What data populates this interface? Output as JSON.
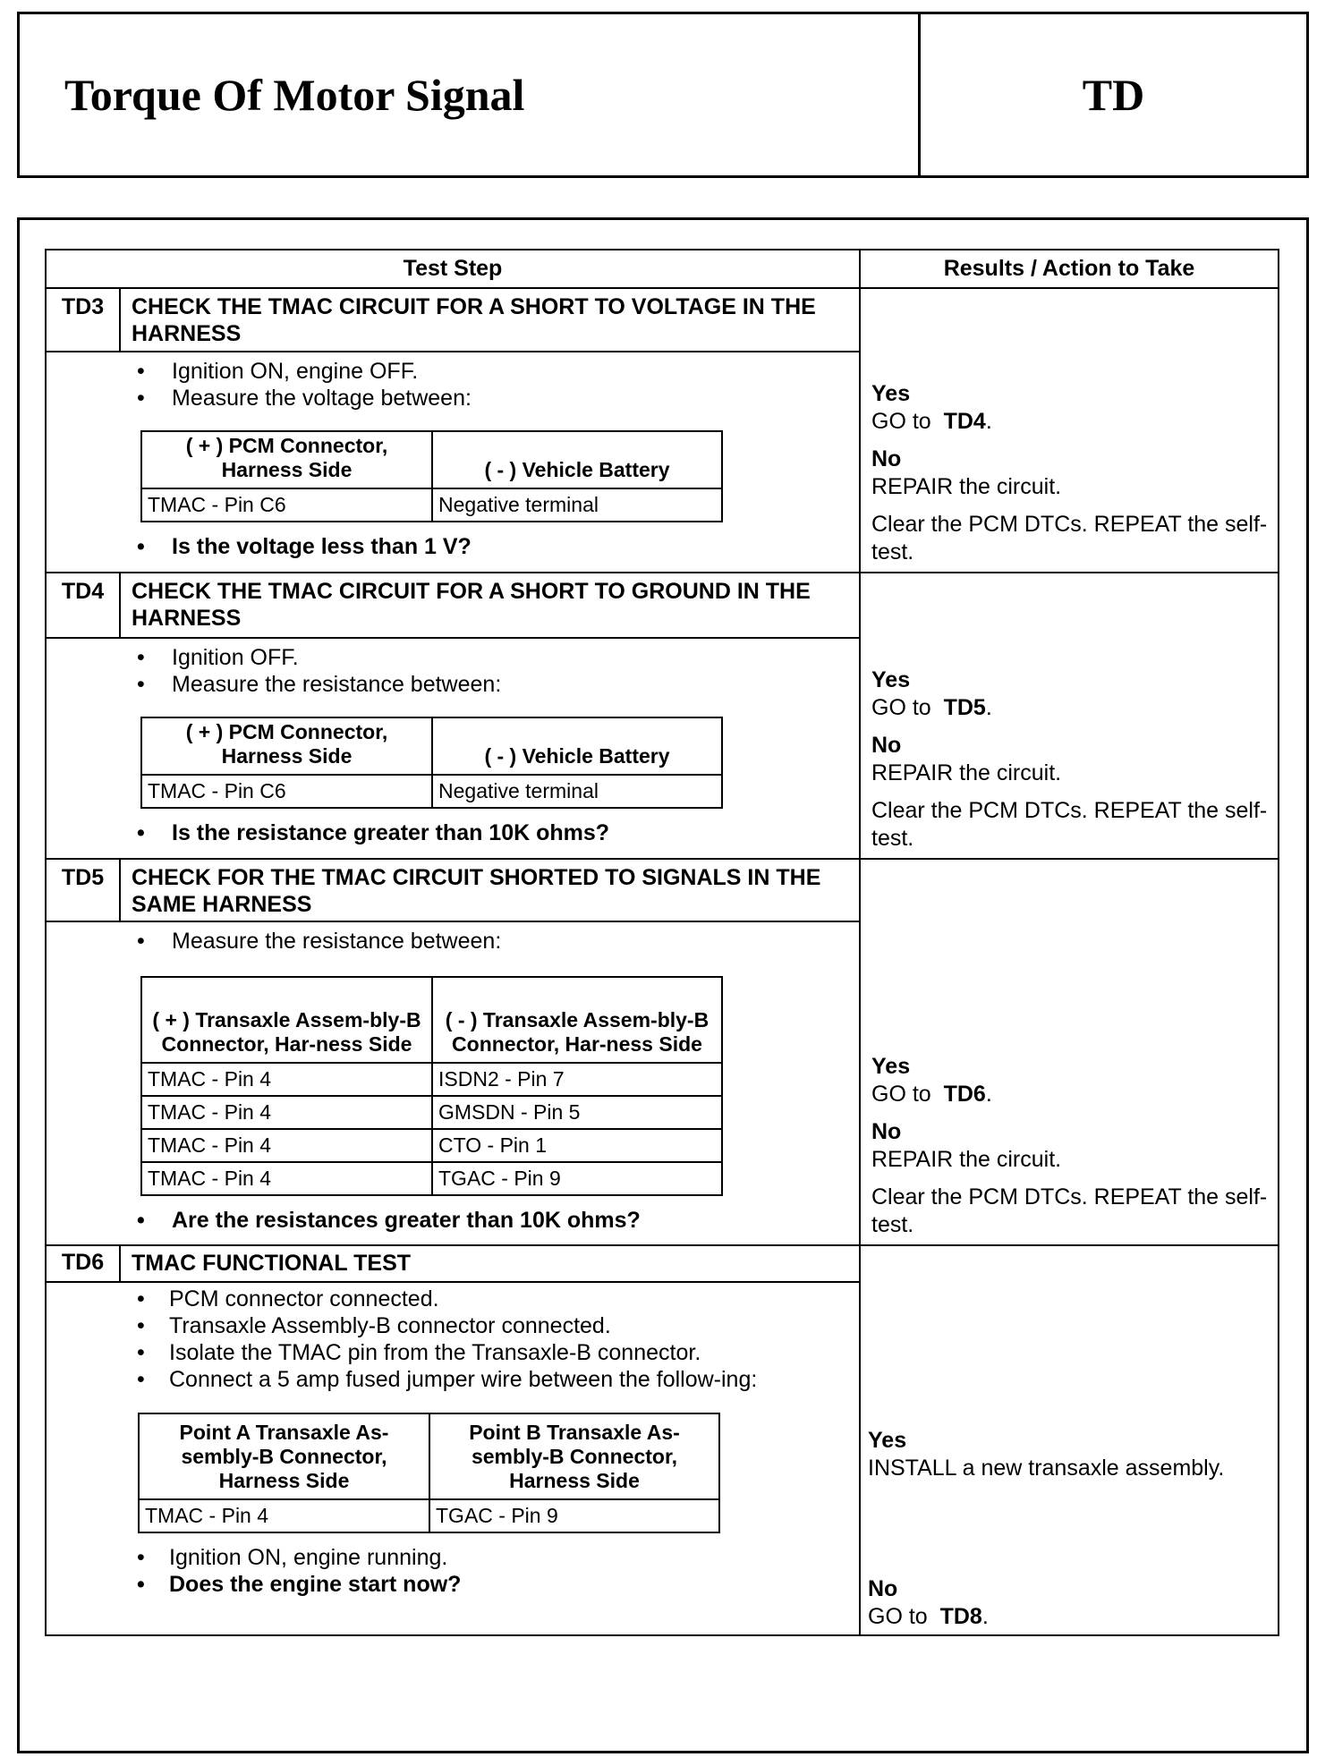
{
  "header": {
    "title": "Torque Of Motor Signal",
    "code": "TD"
  },
  "table": {
    "col_test_step": "Test Step",
    "col_results": "Results / Action to Take"
  },
  "steps": [
    {
      "id": "TD3",
      "title": "CHECK THE TMAC CIRCUIT FOR A SHORT TO VOLTAGE IN THE HARNESS",
      "bullets": [
        "Ignition ON, engine OFF.",
        "Measure the voltage between:"
      ],
      "subtable": {
        "headers": [
          "( + ) PCM Connector, Harness Side",
          "( - ) Vehicle Battery"
        ],
        "rows": [
          [
            "TMAC - Pin C6",
            "Negative terminal"
          ]
        ]
      },
      "question": "Is the voltage less than 1 V?",
      "results": {
        "yes": "Yes",
        "yes_text": "GO to",
        "yes_ref": "TD4",
        "no": "No",
        "no_text": "REPAIR the circuit.",
        "extra": "Clear the PCM DTCs. REPEAT the self-test."
      }
    },
    {
      "id": "TD4",
      "title": "CHECK THE TMAC CIRCUIT FOR A SHORT TO GROUND IN THE HARNESS",
      "bullets": [
        "Ignition OFF.",
        "Measure the resistance between:"
      ],
      "subtable": {
        "headers": [
          "( + ) PCM Connector, Harness Side",
          "( - ) Vehicle Battery"
        ],
        "rows": [
          [
            "TMAC - Pin C6",
            "Negative terminal"
          ]
        ]
      },
      "question": "Is the resistance greater than 10K ohms?",
      "results": {
        "yes": "Yes",
        "yes_text": "GO to",
        "yes_ref": "TD5",
        "no": "No",
        "no_text": "REPAIR the circuit.",
        "extra": "Clear the PCM DTCs. REPEAT the self-test."
      }
    },
    {
      "id": "TD5",
      "title": "CHECK FOR THE TMAC CIRCUIT SHORTED TO SIGNALS IN THE SAME HARNESS",
      "bullets": [
        "Measure the resistance between:"
      ],
      "subtable": {
        "headers": [
          "( + ) Transaxle Assem-bly-B Connector, Har-ness Side",
          "( - ) Transaxle Assem-bly-B Connector, Har-ness Side"
        ],
        "rows": [
          [
            "TMAC - Pin 4",
            "ISDN2 - Pin 7"
          ],
          [
            "TMAC - Pin 4",
            "GMSDN - Pin 5"
          ],
          [
            "TMAC - Pin 4",
            "CTO - Pin 1"
          ],
          [
            "TMAC - Pin 4",
            "TGAC - Pin 9"
          ]
        ]
      },
      "question": "Are the resistances greater than 10K ohms?",
      "results": {
        "yes": "Yes",
        "yes_text": "GO to",
        "yes_ref": "TD6",
        "no": "No",
        "no_text": "REPAIR the circuit.",
        "extra": "Clear the PCM DTCs. REPEAT the self-test."
      }
    },
    {
      "id": "TD6",
      "title": "TMAC FUNCTIONAL TEST",
      "bullets": [
        "PCM connector connected.",
        "Transaxle Assembly-B connector connected.",
        "Isolate the TMAC pin from the Transaxle-B connector.",
        "Connect a 5 amp fused jumper wire between the follow-ing:"
      ],
      "subtable": {
        "headers": [
          "Point A Transaxle As-sembly-B Connector, Harness Side",
          "Point B Transaxle As-sembly-B Connector, Harness Side"
        ],
        "rows": [
          [
            "TMAC - Pin 4",
            "TGAC - Pin 9"
          ]
        ]
      },
      "after_bullets": [
        "Ignition ON, engine running."
      ],
      "question": "Does the engine start now?",
      "results": {
        "yes": "Yes",
        "yes_text": "INSTALL a new transaxle assembly.",
        "no": "No",
        "no_text": "GO to",
        "no_ref": "TD8"
      }
    }
  ]
}
